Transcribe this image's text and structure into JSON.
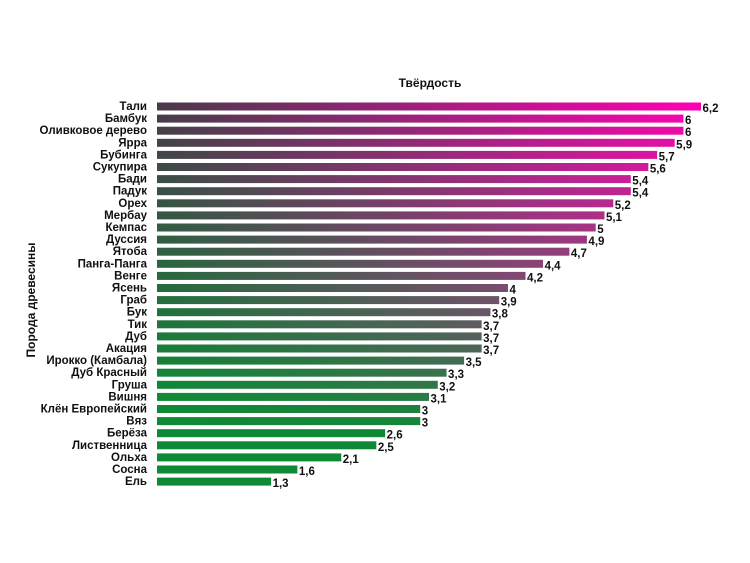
{
  "chart_data": {
    "type": "bar",
    "orientation": "horizontal",
    "title": "Твёрдость",
    "xlabel": "",
    "ylabel": "Порода древесины",
    "xlim": [
      0,
      6.2
    ],
    "grid": false,
    "legend": "none",
    "categories": [
      "Тали",
      "Бамбук",
      "Оливковое дерево",
      "Ярра",
      "Бубинга",
      "Сукупира",
      "Бади",
      "Падук",
      "Орех",
      "Мербау",
      "Кемпас",
      "Дуссия",
      "Ятоба",
      "Панга-Панга",
      "Венге",
      "Ясень",
      "Граб",
      "Бук",
      "Тик",
      "Дуб",
      "Акация",
      "Ирокко (Камбала)",
      "Дуб Красный",
      "Груша",
      "Вишня",
      "Клён Европейский",
      "Вяз",
      "Берёза",
      "Лиственница",
      "Ольха",
      "Сосна",
      "Ель"
    ],
    "values": [
      6.2,
      6,
      6,
      5.9,
      5.7,
      5.6,
      5.4,
      5.4,
      5.2,
      5.1,
      5,
      4.9,
      4.7,
      4.4,
      4.2,
      4,
      3.9,
      3.8,
      3.7,
      3.7,
      3.7,
      3.5,
      3.3,
      3.2,
      3.1,
      3,
      3,
      2.6,
      2.5,
      2.1,
      1.6,
      1.3
    ],
    "value_labels": [
      "6,2",
      "6",
      "6",
      "5,9",
      "5,7",
      "5,6",
      "5,4",
      "5,4",
      "5,2",
      "5,1",
      "5",
      "4,9",
      "4,7",
      "4,4",
      "4,2",
      "4",
      "3,9",
      "3,8",
      "3,7",
      "3,7",
      "3,7",
      "3,5",
      "3,3",
      "3,2",
      "3,1",
      "3",
      "3",
      "2,6",
      "2,5",
      "2,1",
      "1,6",
      "1,3"
    ],
    "colors": {
      "high": "#ff00b4",
      "low": "#0e8a36",
      "mid_dark": "#4a3a4a"
    }
  }
}
